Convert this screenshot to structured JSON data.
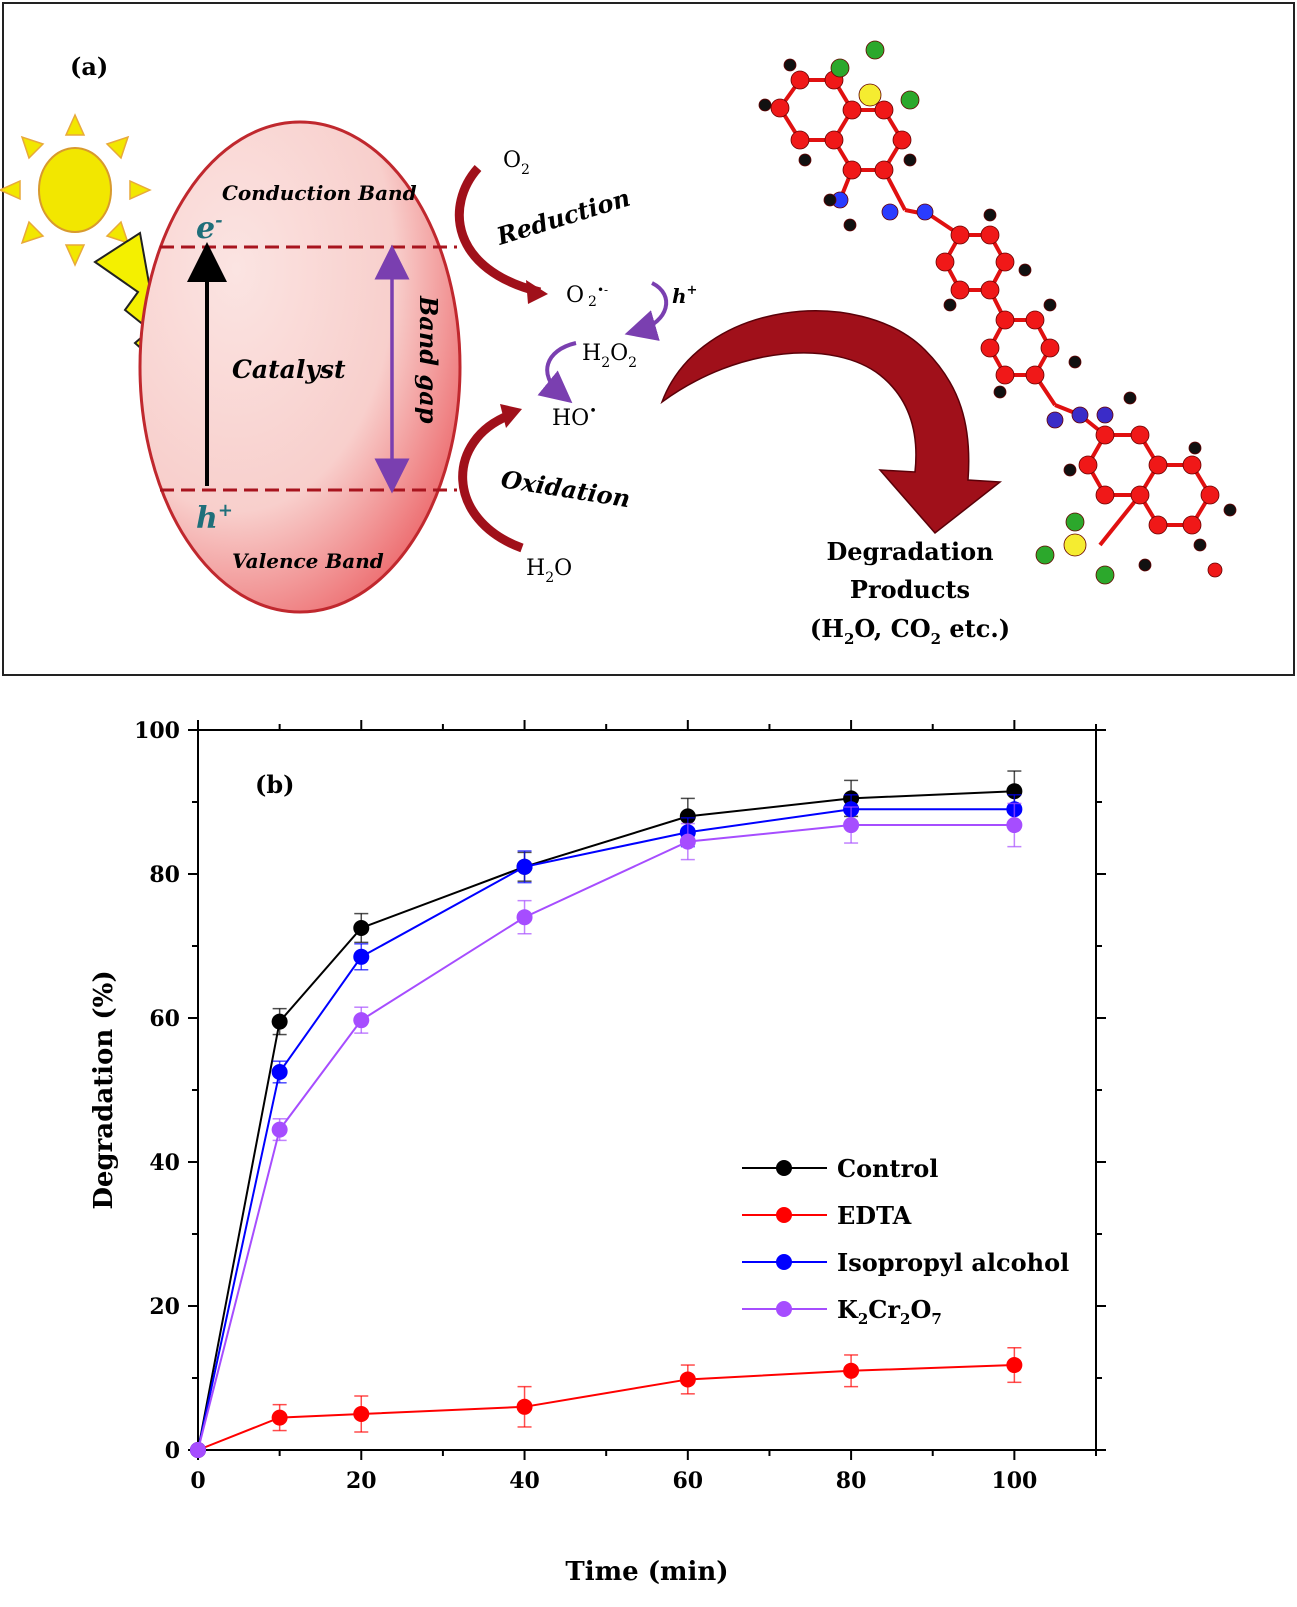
{
  "panel_a": {
    "label": "(a)",
    "conduction_band": "Conduction Band",
    "valence_band": "Valence Band",
    "catalyst": "Catalyst",
    "band_gap": "Band gap",
    "electron": "e",
    "electron_sup": "-",
    "hole": "h",
    "hole_sup": "+",
    "o2": "O",
    "o2_sub": "2",
    "reduction": "Reduction",
    "superoxide": "O",
    "superoxide_sub": "2",
    "superoxide_sup": "•-",
    "h_plus": "h",
    "h_plus_sup": "+",
    "h2o2_a": "H",
    "h2o2_sub1": "2",
    "h2o2_b": "O",
    "h2o2_sub2": "2",
    "hydroxyl": "HO",
    "hydroxyl_sup": "•",
    "oxidation": "Oxidation",
    "water": "H",
    "water_sub": "2",
    "water_b": "O",
    "products_line1": "Degradation",
    "products_line2": "Products",
    "products_line3_a": "(H",
    "products_line3_sub1": "2",
    "products_line3_b": "O, CO",
    "products_line3_sub2": "2",
    "products_line3_c": " etc.)",
    "colors": {
      "ellipse_border": "#c0282e",
      "band_line": "#a8141e",
      "arrow_red": "#a0101a",
      "arrow_purple": "#7a3fb0",
      "sun": "#f2e700",
      "lightning": "#f4f000"
    }
  },
  "chart_data": {
    "type": "line",
    "panel_label": "(b)",
    "xlabel": "Time (min)",
    "ylabel": "Degradation (%)",
    "xlim": [
      0,
      110
    ],
    "ylim": [
      0,
      100
    ],
    "x_ticks": [
      "0",
      "20",
      "40",
      "60",
      "80",
      "100"
    ],
    "y_ticks": [
      "0",
      "20",
      "40",
      "60",
      "80",
      "100"
    ],
    "x": [
      0,
      10,
      20,
      40,
      60,
      80,
      100
    ],
    "legend_position": "lower-right",
    "series": [
      {
        "name": "Control",
        "color": "#000000",
        "values": [
          0,
          59.5,
          72.5,
          81,
          88,
          90.5,
          91.5
        ],
        "errors": [
          0,
          1.8,
          2.0,
          2.0,
          2.5,
          2.5,
          2.8
        ]
      },
      {
        "name": "EDTA",
        "color": "#ff0000",
        "values": [
          0,
          4.5,
          5.0,
          6.0,
          9.8,
          11.0,
          11.8
        ],
        "errors": [
          0,
          1.8,
          2.5,
          2.8,
          2.0,
          2.2,
          2.4
        ]
      },
      {
        "name": "Isopropyl alcohol",
        "color": "#0000ff",
        "values": [
          0,
          52.5,
          68.5,
          81,
          85.8,
          89,
          89
        ],
        "errors": [
          0,
          1.5,
          1.8,
          2.2,
          2.0,
          2.0,
          2.0
        ]
      },
      {
        "name_parts": [
          "K",
          "2",
          "Cr",
          "2",
          "O",
          "7"
        ],
        "name": "K2Cr2O7",
        "color": "#a64dff",
        "values": [
          0,
          44.5,
          59.7,
          74,
          84.5,
          86.8,
          86.8
        ],
        "errors": [
          0,
          1.5,
          1.8,
          2.3,
          2.5,
          2.5,
          3.0
        ]
      }
    ]
  }
}
